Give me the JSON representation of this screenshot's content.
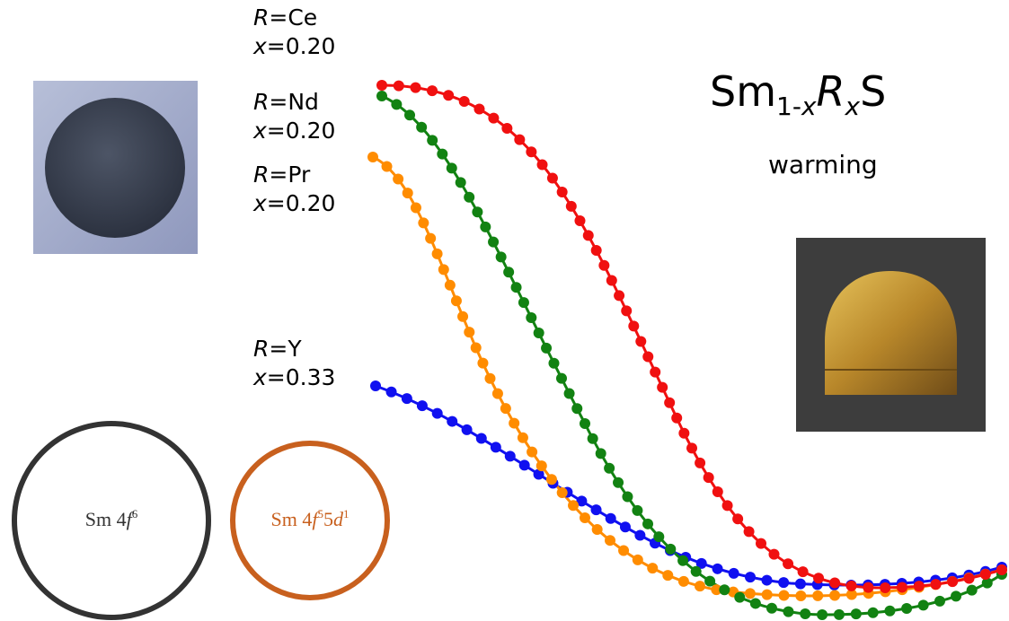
{
  "title": {
    "base": "Sm",
    "sub_num": "1-",
    "sub_var": "x",
    "var": "R",
    "var_sub": "x",
    "end": "S"
  },
  "subtitle": "warming",
  "labels": [
    {
      "var": "R",
      "element": "=Ce",
      "x_var": "x",
      "x_value": "=0.20"
    },
    {
      "var": "R",
      "element": "=Nd",
      "x_var": "x",
      "x_value": "=0.20"
    },
    {
      "var": "R",
      "element": "=Pr",
      "x_var": "x",
      "x_value": "=0.20"
    },
    {
      "var": "R",
      "element": "=Y",
      "x_var": "x",
      "x_value": "=0.33"
    }
  ],
  "states": [
    {
      "text": "Sm 4",
      "orbital": "f",
      "sup": "6"
    },
    {
      "text": "Sm 4",
      "orbital": "f",
      "sup": "5",
      "text2": "5",
      "orbital2": "d",
      "sup2": "1"
    }
  ]
}
